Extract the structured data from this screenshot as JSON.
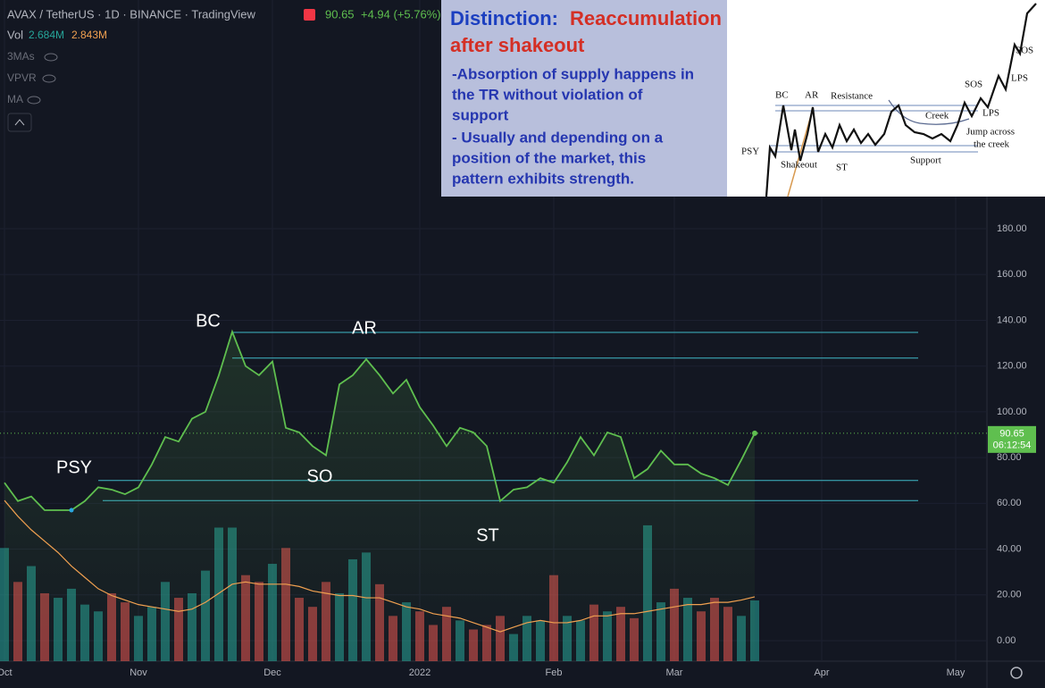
{
  "header": {
    "symbol": "AVAX / TetherUS · 1D · BINANCE · TradingView",
    "price": "90.65",
    "change": "+4.94 (+5.76%)",
    "vol_label": "Vol",
    "vol_value": "2.684M",
    "vol_ma_value": "2.843M",
    "indicators": [
      "3MAs",
      "VPVR",
      "MA"
    ]
  },
  "inset": {
    "title_prefix": "Distinction:",
    "title_rest": [
      "Reaccumulation",
      "after shakeout"
    ],
    "lines": [
      "-Absorption of supply happens in",
      "the TR without violation of",
      "support",
      "- Usually and depending on a",
      "position of the market, this",
      "pattern exhibits strength."
    ],
    "diagram_labels": [
      "BC",
      "AR",
      "Resistance",
      "Creek",
      "SOS",
      "LPS",
      "SOS",
      "LPS",
      "PSY",
      "Shakeout",
      "ST",
      "Support",
      "Jump across",
      "the creek"
    ]
  },
  "chart_data": {
    "type": "line",
    "categories": [
      "Oct",
      null,
      null,
      null,
      null,
      null,
      null,
      null,
      null,
      null,
      "Nov",
      null,
      null,
      null,
      null,
      null,
      null,
      null,
      null,
      null,
      "Dec",
      null,
      null,
      null,
      null,
      null,
      null,
      null,
      null,
      null,
      null,
      "2022",
      null,
      null,
      null,
      null,
      null,
      null,
      null,
      null,
      null,
      "Feb",
      null,
      null,
      null,
      null,
      null,
      null,
      null,
      null,
      "Mar",
      null,
      null,
      null,
      null,
      null,
      null,
      null,
      null,
      null,
      null,
      "Apr",
      null,
      null,
      null,
      null,
      null,
      null,
      null,
      null,
      null,
      "May"
    ],
    "series": [
      {
        "name": "AVAX / TetherUS",
        "color": "#5fbf4f",
        "values": [
          69,
          61,
          63,
          57,
          57,
          57,
          61,
          67,
          66,
          64,
          67,
          77,
          89,
          87,
          97,
          100,
          116,
          135,
          120,
          116,
          122,
          93,
          91,
          85,
          81,
          112,
          116,
          123,
          116,
          108,
          114,
          102,
          94,
          85,
          93,
          91,
          85,
          61,
          66,
          67,
          71,
          69,
          78,
          89,
          81,
          91,
          89,
          71,
          75,
          83,
          77,
          77,
          73,
          71,
          68,
          79,
          90.65,
          null,
          null,
          null,
          null,
          null,
          null,
          null,
          null,
          null,
          null,
          null,
          null,
          null,
          null,
          null
        ]
      },
      {
        "name": "Vol",
        "axis": "y2",
        "kind": "bar",
        "colors": [
          "#26a69a",
          "#ef5350",
          "#26a69a",
          "#ef5350",
          "#26a69a",
          "#26a69a",
          "#26a69a",
          "#26a69a",
          "#ef5350",
          "#ef5350",
          "#26a69a",
          "#26a69a",
          "#26a69a",
          "#ef5350",
          "#26a69a",
          "#26a69a",
          "#26a69a",
          "#26a69a",
          "#ef5350",
          "#ef5350",
          "#26a69a",
          "#ef5350",
          "#ef5350",
          "#ef5350",
          "#ef5350",
          "#26a69a",
          "#26a69a",
          "#26a69a",
          "#ef5350",
          "#ef5350",
          "#26a69a",
          "#ef5350",
          "#ef5350",
          "#ef5350",
          "#26a69a",
          "#ef5350",
          "#ef5350",
          "#ef5350",
          "#26a69a",
          "#26a69a",
          "#26a69a",
          "#ef5350",
          "#26a69a",
          "#26a69a",
          "#ef5350",
          "#26a69a",
          "#ef5350",
          "#ef5350",
          "#26a69a",
          "#26a69a",
          "#ef5350",
          "#26a69a",
          "#ef5350",
          "#ef5350",
          "#ef5350",
          "#26a69a",
          "#26a69a"
        ],
        "values": [
          5.0,
          3.5,
          4.2,
          3.0,
          2.8,
          3.2,
          2.5,
          2.2,
          3.0,
          2.6,
          2.0,
          2.4,
          3.5,
          2.8,
          3.0,
          4.0,
          5.9,
          5.9,
          3.8,
          3.5,
          4.3,
          5.0,
          2.8,
          2.4,
          3.5,
          3.0,
          4.5,
          4.8,
          3.4,
          2.0,
          2.6,
          2.2,
          1.6,
          2.4,
          1.8,
          1.4,
          1.6,
          2.0,
          1.2,
          2.0,
          1.8,
          3.8,
          2.0,
          1.8,
          2.5,
          2.2,
          2.4,
          1.9,
          6.0,
          2.6,
          3.2,
          2.8,
          2.2,
          2.8,
          2.4,
          2.0,
          2.684,
          null,
          null,
          null,
          null,
          null,
          null,
          null,
          null,
          null,
          null,
          null,
          null,
          null,
          null,
          null
        ]
      },
      {
        "name": "MA",
        "axis": "y2",
        "color": "#f0a050",
        "values": [
          7.1,
          6.4,
          5.8,
          5.3,
          4.8,
          4.2,
          3.7,
          3.2,
          2.9,
          2.7,
          2.5,
          2.4,
          2.3,
          2.2,
          2.3,
          2.6,
          3.0,
          3.4,
          3.5,
          3.4,
          3.4,
          3.4,
          3.3,
          3.1,
          3.0,
          2.9,
          2.9,
          2.8,
          2.8,
          2.6,
          2.4,
          2.3,
          2.1,
          2.0,
          1.9,
          1.7,
          1.5,
          1.3,
          1.5,
          1.7,
          1.8,
          1.7,
          1.7,
          1.8,
          2.0,
          2.0,
          2.1,
          2.1,
          2.2,
          2.3,
          2.4,
          2.5,
          2.5,
          2.6,
          2.6,
          2.7,
          2.843,
          null,
          null,
          null,
          null,
          null,
          null,
          null,
          null,
          null,
          null,
          null,
          null,
          null,
          null,
          null
        ]
      }
    ],
    "ylim": [
      -9,
      280
    ],
    "yticks": [
      {
        "value": 0,
        "label": "0.00"
      },
      {
        "value": 20,
        "label": "20.00"
      },
      {
        "value": 40,
        "label": "40.00"
      },
      {
        "value": 60,
        "label": "60.00"
      },
      {
        "value": 80,
        "label": "80.00"
      },
      {
        "value": 100,
        "label": "100.00"
      },
      {
        "value": 120,
        "label": "120.00"
      },
      {
        "value": 140,
        "label": "140.00"
      },
      {
        "value": 160,
        "label": "160.00"
      },
      {
        "value": 180,
        "label": "180.00"
      }
    ],
    "y2lim": [
      0,
      29.2
    ],
    "levels": [
      134.7,
      123.5,
      70,
      61.2
    ],
    "level_color": "#3fb8c8",
    "annotations": [
      "PSY",
      "BC",
      "AR",
      "SO",
      "ST"
    ],
    "countdown": "06:12:54"
  }
}
